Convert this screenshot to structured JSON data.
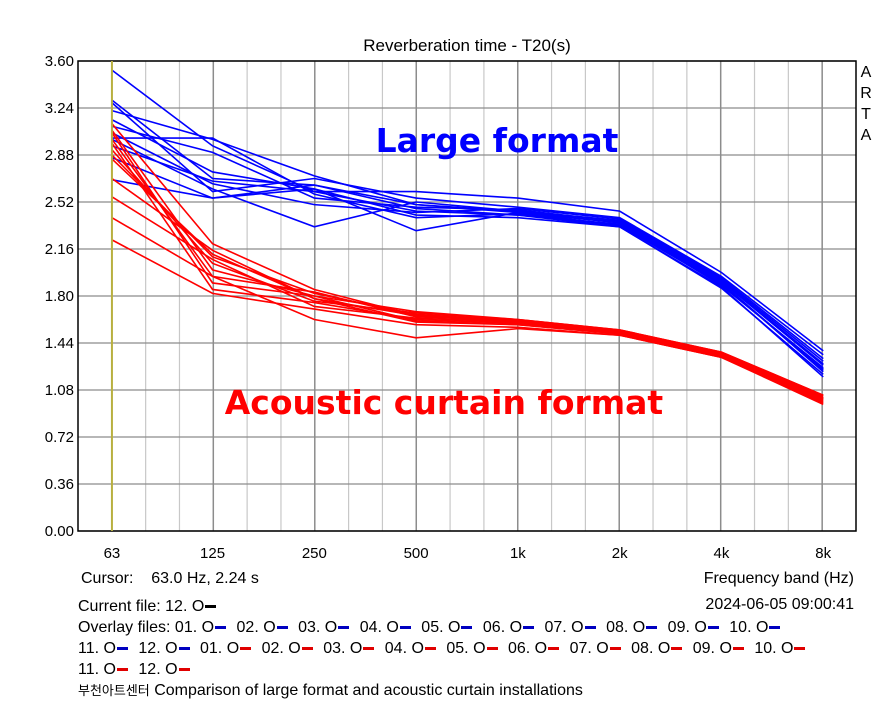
{
  "chart_data": {
    "type": "line",
    "title": "Reverberation time - T20(s)",
    "xlabel": "Frequency band (Hz)",
    "ylabel": "",
    "x_scale": "log",
    "categories": [
      "63",
      "125",
      "250",
      "500",
      "1k",
      "2k",
      "4k",
      "8k"
    ],
    "x": [
      63,
      125,
      250,
      500,
      1000,
      2000,
      4000,
      8000
    ],
    "xlim": [
      50,
      10000
    ],
    "ylim": [
      0,
      3.6
    ],
    "yticks": [
      "0.00",
      "0.36",
      "0.72",
      "1.08",
      "1.44",
      "1.80",
      "2.16",
      "2.52",
      "2.88",
      "3.24",
      "3.60"
    ],
    "grid": true,
    "watermark": "ARTA",
    "cursor_x": 63,
    "annotations": [
      {
        "text": "Large format",
        "color": "#0000ff"
      },
      {
        "text": "Acoustic curtain format",
        "color": "#ff0000"
      }
    ],
    "colors": {
      "large": "#0000ff",
      "curtain": "#ff0000",
      "cursor": "#b8b040",
      "grid_major": "#8c8c8c",
      "grid_minor": "#c8c8c8"
    },
    "series": [
      {
        "name": "01. O large",
        "group": "large",
        "values": [
          3.53,
          2.95,
          2.6,
          2.45,
          2.42,
          2.35,
          1.9,
          1.22
        ]
      },
      {
        "name": "02. O large",
        "group": "large",
        "values": [
          3.3,
          2.7,
          2.65,
          2.5,
          2.45,
          2.38,
          1.93,
          1.3
        ]
      },
      {
        "name": "03. O large",
        "group": "large",
        "values": [
          3.28,
          2.6,
          2.7,
          2.55,
          2.48,
          2.4,
          1.95,
          1.35
        ]
      },
      {
        "name": "04. O large",
        "group": "large",
        "values": [
          3.22,
          3.0,
          2.72,
          2.5,
          2.44,
          2.36,
          1.88,
          1.25
        ]
      },
      {
        "name": "05. O large",
        "group": "large",
        "values": [
          3.15,
          2.75,
          2.62,
          2.42,
          2.4,
          2.33,
          1.86,
          1.2
        ]
      },
      {
        "name": "06. O large",
        "group": "large",
        "values": [
          3.1,
          2.9,
          2.55,
          2.48,
          2.46,
          2.37,
          1.92,
          1.28
        ]
      },
      {
        "name": "07. O large",
        "group": "large",
        "values": [
          3.01,
          3.01,
          2.58,
          2.4,
          2.43,
          2.34,
          1.89,
          1.24
        ]
      },
      {
        "name": "08. O large",
        "group": "large",
        "values": [
          3.0,
          2.62,
          2.33,
          2.52,
          2.45,
          2.36,
          1.91,
          1.27
        ]
      },
      {
        "name": "09. O large",
        "group": "large",
        "values": [
          2.95,
          2.68,
          2.6,
          2.6,
          2.55,
          2.45,
          1.98,
          1.38
        ]
      },
      {
        "name": "10. O large",
        "group": "large",
        "values": [
          2.86,
          2.55,
          2.62,
          2.3,
          2.44,
          2.34,
          1.9,
          1.23
        ]
      },
      {
        "name": "11. O large",
        "group": "large",
        "values": [
          2.69,
          2.55,
          2.65,
          2.47,
          2.42,
          2.33,
          1.87,
          1.18
        ]
      },
      {
        "name": "12. O large",
        "group": "large",
        "values": [
          3.05,
          2.66,
          2.5,
          2.44,
          2.47,
          2.39,
          1.94,
          1.32
        ]
      },
      {
        "name": "01. O curtain",
        "group": "curtain",
        "values": [
          3.12,
          2.2,
          1.85,
          1.65,
          1.6,
          1.52,
          1.36,
          1.02
        ]
      },
      {
        "name": "02. O curtain",
        "group": "curtain",
        "values": [
          3.07,
          2.0,
          1.8,
          1.68,
          1.62,
          1.54,
          1.37,
          1.04
        ]
      },
      {
        "name": "03. O curtain",
        "group": "curtain",
        "values": [
          2.97,
          1.85,
          1.75,
          1.62,
          1.59,
          1.52,
          1.35,
          1.0
        ]
      },
      {
        "name": "04. O curtain",
        "group": "curtain",
        "values": [
          2.88,
          2.1,
          1.82,
          1.66,
          1.61,
          1.53,
          1.36,
          1.03
        ]
      },
      {
        "name": "05. O curtain",
        "group": "curtain",
        "values": [
          2.7,
          2.15,
          1.78,
          1.6,
          1.58,
          1.51,
          1.34,
          0.99
        ]
      },
      {
        "name": "06. O curtain",
        "group": "curtain",
        "values": [
          2.56,
          2.08,
          1.72,
          1.63,
          1.6,
          1.52,
          1.35,
          1.01
        ]
      },
      {
        "name": "07. O curtain",
        "group": "curtain",
        "values": [
          2.4,
          1.95,
          1.62,
          1.48,
          1.55,
          1.5,
          1.33,
          0.97
        ]
      },
      {
        "name": "08. O curtain",
        "group": "curtain",
        "values": [
          2.23,
          1.82,
          1.7,
          1.58,
          1.56,
          1.5,
          1.33,
          0.98
        ]
      },
      {
        "name": "09. O curtain",
        "group": "curtain",
        "values": [
          3.0,
          1.95,
          1.83,
          1.64,
          1.61,
          1.53,
          1.36,
          1.02
        ]
      },
      {
        "name": "10. O curtain",
        "group": "curtain",
        "values": [
          2.92,
          2.05,
          1.76,
          1.67,
          1.62,
          1.54,
          1.37,
          1.04
        ]
      },
      {
        "name": "11. O curtain",
        "group": "curtain",
        "values": [
          3.05,
          1.9,
          1.8,
          1.61,
          1.58,
          1.51,
          1.34,
          1.0
        ]
      },
      {
        "name": "12. O curtain",
        "group": "curtain",
        "values": [
          2.85,
          2.12,
          1.78,
          1.65,
          1.6,
          1.52,
          1.35,
          1.01
        ]
      }
    ]
  },
  "info": {
    "cursor_label": "Cursor:",
    "cursor_value": "63.0 Hz, 2.24 s",
    "date": "2024-06-05  09:00:41",
    "current_file_label": "Current file: 12. O",
    "current_file_color": "#000000",
    "overlay_label": "Overlay files:",
    "overlay_files": [
      {
        "label": "01. O",
        "color": "#0000c0"
      },
      {
        "label": "02. O",
        "color": "#0000c0"
      },
      {
        "label": "03. O",
        "color": "#0000c0"
      },
      {
        "label": "04. O",
        "color": "#0000c0"
      },
      {
        "label": "05. O",
        "color": "#0000c0"
      },
      {
        "label": "06. O",
        "color": "#0000c0"
      },
      {
        "label": "07. O",
        "color": "#0000c0"
      },
      {
        "label": "08. O",
        "color": "#0000c0"
      },
      {
        "label": "09. O",
        "color": "#0000c0"
      },
      {
        "label": "10. O",
        "color": "#0000c0"
      },
      {
        "label": "11. O",
        "color": "#0000c0"
      },
      {
        "label": "12. O",
        "color": "#0000c0"
      },
      {
        "label": "01. O",
        "color": "#e00000"
      },
      {
        "label": "02. O",
        "color": "#e00000"
      },
      {
        "label": "03. O",
        "color": "#e00000"
      },
      {
        "label": "04. O",
        "color": "#e00000"
      },
      {
        "label": "05. O",
        "color": "#e00000"
      },
      {
        "label": "06. O",
        "color": "#e00000"
      },
      {
        "label": "07. O",
        "color": "#e00000"
      },
      {
        "label": "08. O",
        "color": "#e00000"
      },
      {
        "label": "09. O",
        "color": "#e00000"
      },
      {
        "label": "10. O",
        "color": "#e00000"
      },
      {
        "label": "11. O",
        "color": "#e00000"
      },
      {
        "label": "12. O",
        "color": "#e00000"
      }
    ],
    "venue": "부천아트센터",
    "description": "Comparison of large format and acoustic curtain installations"
  }
}
